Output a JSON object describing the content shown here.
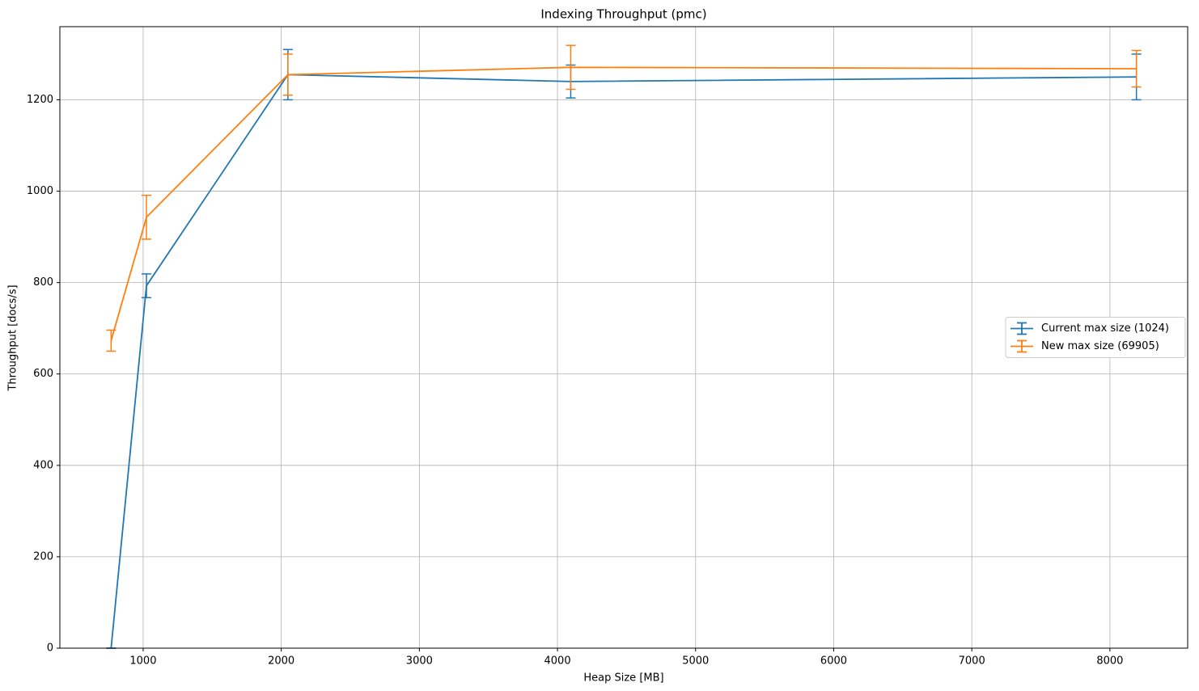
{
  "chart_data": {
    "type": "line",
    "title": "Indexing Throughput (pmc)",
    "x_label": "Heap Size [MB]",
    "y_label": "Throughput [docs/s]",
    "x": [
      768,
      1024,
      2048,
      4096,
      8192
    ],
    "series": [
      {
        "name": "Current max size (1024)",
        "color": "#1f77b4",
        "values": [
          0,
          793,
          1255,
          1240,
          1250
        ],
        "errors": [
          0,
          26,
          55,
          36,
          50
        ]
      },
      {
        "name": "New max size (69905)",
        "color": "#ff7f0e",
        "values": [
          673,
          943,
          1255,
          1271,
          1268
        ],
        "errors": [
          23,
          48,
          45,
          48,
          40
        ]
      }
    ],
    "xlim": [
      397,
      8563
    ],
    "ylim": [
      0,
      1360
    ],
    "xticks": [
      1000,
      2000,
      3000,
      4000,
      5000,
      6000,
      7000,
      8000
    ],
    "yticks": [
      0,
      200,
      400,
      600,
      800,
      1000,
      1200
    ],
    "grid": true,
    "legend": "center right"
  }
}
